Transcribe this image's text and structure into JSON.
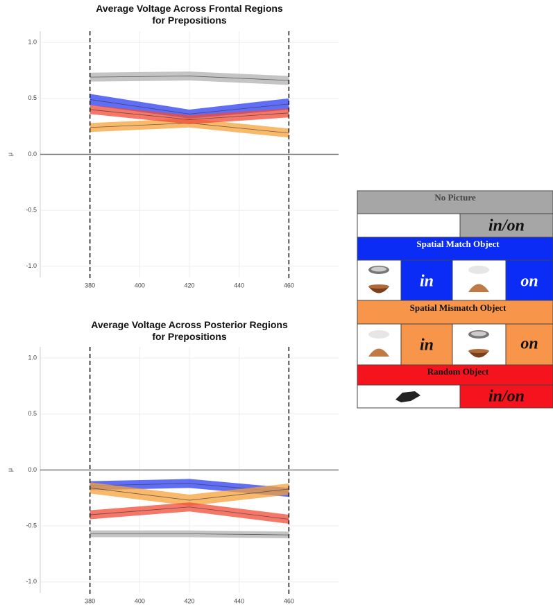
{
  "chart_data": [
    {
      "type": "line",
      "title": "Average Voltage Across Frontal Regions\nfor Prepositions",
      "ylabel": "μ",
      "x": [
        380,
        420,
        460
      ],
      "xlim": [
        360,
        480
      ],
      "xticks": [
        380,
        400,
        420,
        440,
        460
      ],
      "ylim": [
        -1.1,
        1.1
      ],
      "yticks": [
        {
          "value": -1,
          "label": "-1.0"
        },
        -0.5,
        {
          "value": 0,
          "label": "0.0"
        },
        0.5,
        {
          "value": 1,
          "label": "1.0"
        }
      ],
      "grid": true,
      "vlines": [
        380,
        460
      ],
      "hline": 0,
      "series": [
        {
          "name": "No Picture",
          "color": "#b0b0b0",
          "values": [
            0.69,
            0.7,
            0.66
          ],
          "errors": [
            0.04,
            0.04,
            0.04
          ]
        },
        {
          "name": "Spatial Match Object",
          "color": "#2b3cf2",
          "values": [
            0.49,
            0.36,
            0.45
          ],
          "errors": [
            0.05,
            0.04,
            0.05
          ]
        },
        {
          "name": "Spatial Mismatch Object",
          "color": "#f5a13a",
          "values": [
            0.24,
            0.28,
            0.19
          ],
          "errors": [
            0.04,
            0.04,
            0.04
          ]
        },
        {
          "name": "Random Object",
          "color": "#f04a35",
          "values": [
            0.4,
            0.31,
            0.37
          ],
          "errors": [
            0.04,
            0.04,
            0.04
          ]
        }
      ]
    },
    {
      "type": "line",
      "title": "Average Voltage Across Posterior Regions\nfor Prepositions",
      "ylabel": "μ",
      "x": [
        380,
        420,
        460
      ],
      "xlim": [
        360,
        480
      ],
      "xticks": [
        380,
        400,
        420,
        440,
        460
      ],
      "ylim": [
        -1.1,
        1.1
      ],
      "yticks": [
        {
          "value": -1,
          "label": "-1.0"
        },
        -0.5,
        {
          "value": 0,
          "label": "0.0"
        },
        0.5,
        {
          "value": 1,
          "label": "1.0"
        }
      ],
      "grid": true,
      "vlines": [
        380,
        460
      ],
      "hline": 0,
      "series": [
        {
          "name": "No Picture",
          "color": "#b0b0b0",
          "values": [
            -0.57,
            -0.57,
            -0.58
          ],
          "errors": [
            0.03,
            0.03,
            0.03
          ]
        },
        {
          "name": "Spatial Match Object",
          "color": "#2b3cf2",
          "values": [
            -0.14,
            -0.12,
            -0.2
          ],
          "errors": [
            0.04,
            0.04,
            0.04
          ]
        },
        {
          "name": "Spatial Mismatch Object",
          "color": "#f5a13a",
          "values": [
            -0.16,
            -0.27,
            -0.17
          ],
          "errors": [
            0.05,
            0.05,
            0.05
          ]
        },
        {
          "name": "Random Object",
          "color": "#f04a35",
          "values": [
            -0.4,
            -0.33,
            -0.44
          ],
          "errors": [
            0.04,
            0.04,
            0.04
          ]
        }
      ]
    }
  ],
  "legend": {
    "labels": [
      "in/on",
      "in",
      "on",
      "in",
      "on",
      "in/on"
    ]
  }
}
